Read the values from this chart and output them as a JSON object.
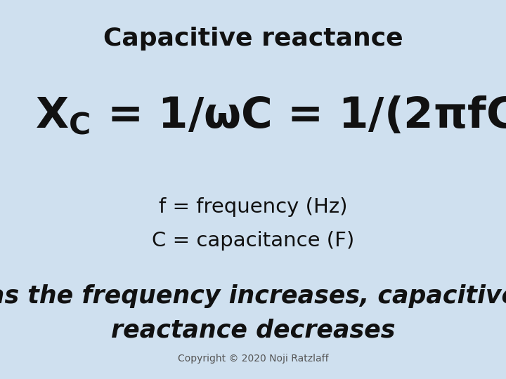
{
  "title": "Capacitive reactance",
  "line1": "f = frequency (Hz)",
  "line2": "C = capacitance (F)",
  "italic_line1": "as the frequency increases, capacitive",
  "italic_line2": "reactance decreases",
  "copyright": "Copyright © 2020 Noji Ratzlaff",
  "bg_color": "#cfe0ef",
  "text_color": "#111111",
  "title_fontsize": 26,
  "formula_fontsize": 44,
  "body_fontsize": 21,
  "italic_fontsize": 25,
  "copyright_fontsize": 10
}
